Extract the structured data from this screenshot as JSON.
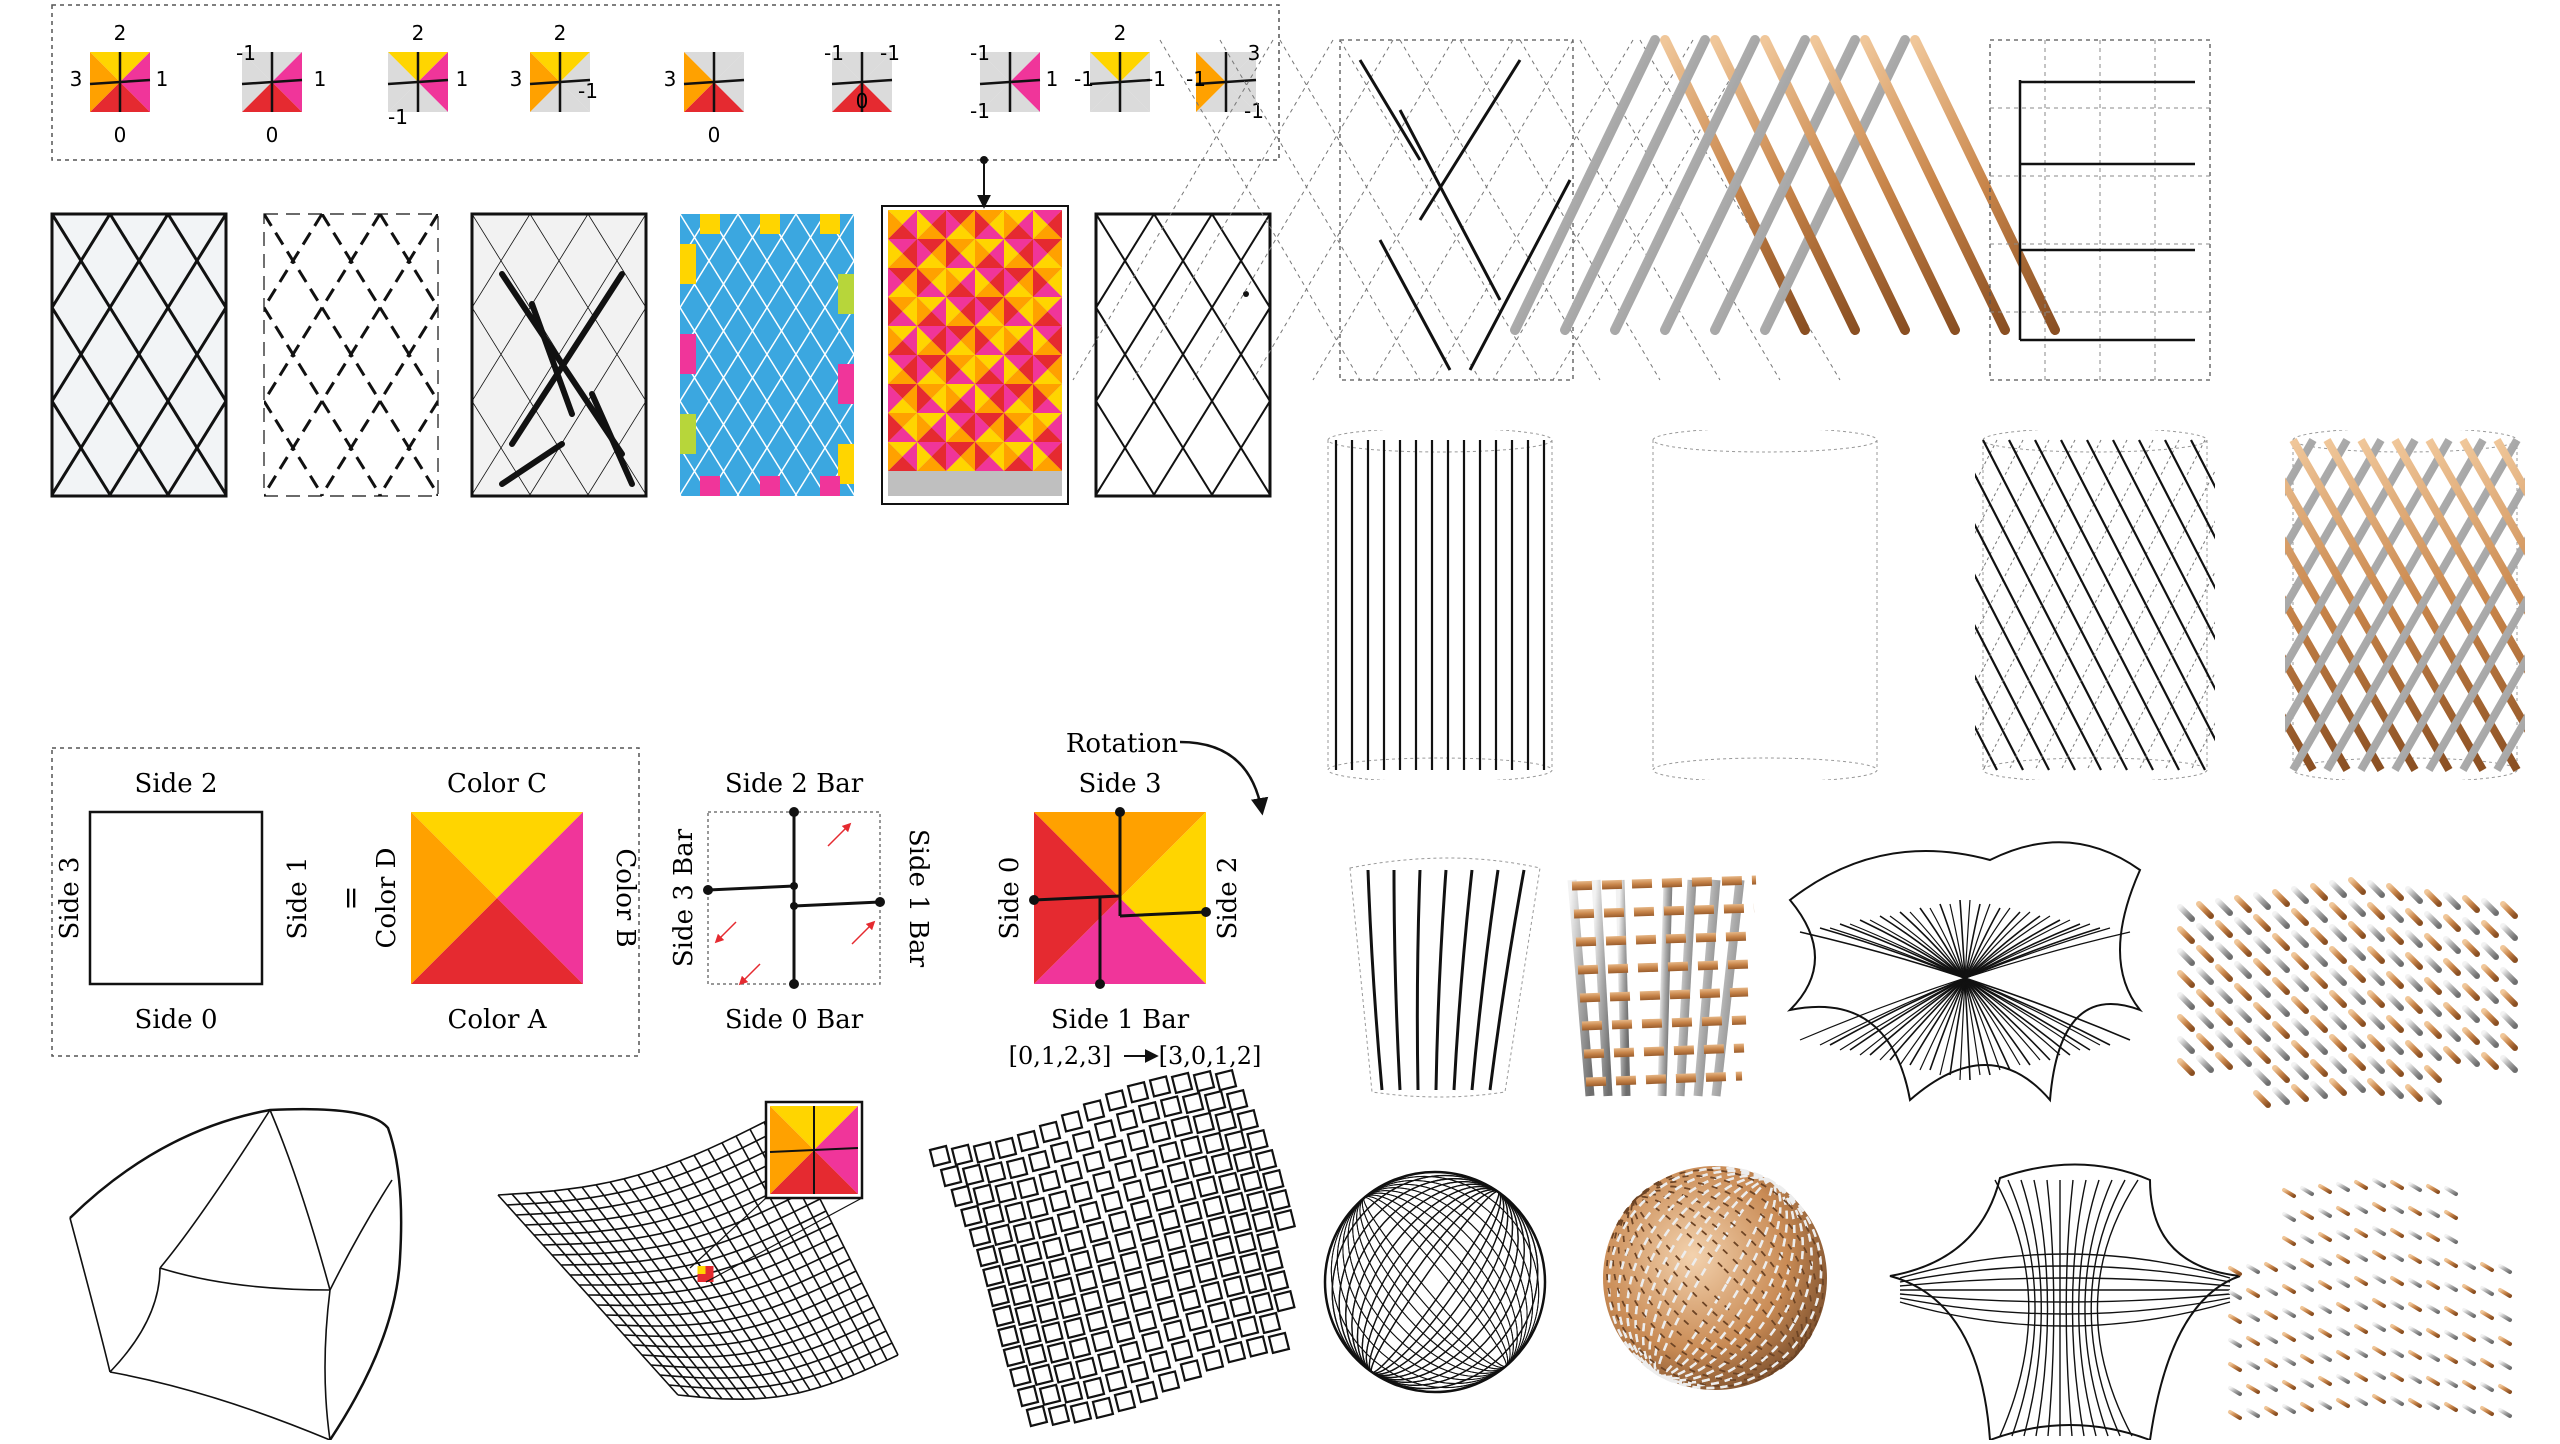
{
  "colors": {
    "yellow": "#FFD500",
    "orange": "#FFA100",
    "magenta": "#F0359A",
    "red": "#E52A30",
    "gray": "#BDBDBD",
    "blue": "#3BA7E0",
    "lime": "#B7D63A",
    "wood": "#C8854A",
    "steel": "#A9A9A9",
    "ink": "#111111"
  },
  "icons": [
    "tile-icon",
    "arrow-icon",
    "rotation-arrow-icon",
    "zoom-tile-icon"
  ],
  "legend_tiles": [
    {
      "labels": [
        "2",
        "1",
        "0",
        "3"
      ]
    },
    {
      "labels": [
        "-1",
        "1",
        "0"
      ]
    },
    {
      "labels": [
        "2",
        "1",
        "-1"
      ]
    },
    {
      "labels": [
        "2",
        "-1",
        "3"
      ]
    },
    {
      "labels": [
        "3",
        "0"
      ]
    },
    {
      "labels": [
        "-1",
        "-1",
        "0"
      ]
    },
    {
      "labels": [
        "-1",
        "1",
        "-1"
      ]
    },
    {
      "labels": [
        "2",
        "-1",
        "-1"
      ]
    },
    {
      "labels": [
        "3",
        "-1",
        "-1"
      ]
    }
  ],
  "definition": {
    "side2": "Side 2",
    "side3": "Side 3",
    "side1": "Side 1",
    "side0": "Side 0",
    "equals": "=",
    "colorC": "Color C",
    "colorD": "Color D",
    "colorB": "Color B",
    "colorA": "Color A",
    "bar2": "Side 2 Bar",
    "bar3": "Side 3 Bar",
    "bar1": "Side 1 Bar",
    "bar0": "Side 0 Bar",
    "rotation": "Rotation",
    "rside3": "Side 3",
    "rside0": "Side 0",
    "rside2": "Side 2",
    "rside1bar": "Side 1 Bar",
    "perm_before": "[0,1,2,3]",
    "perm_after": "[3,0,1,2]"
  }
}
